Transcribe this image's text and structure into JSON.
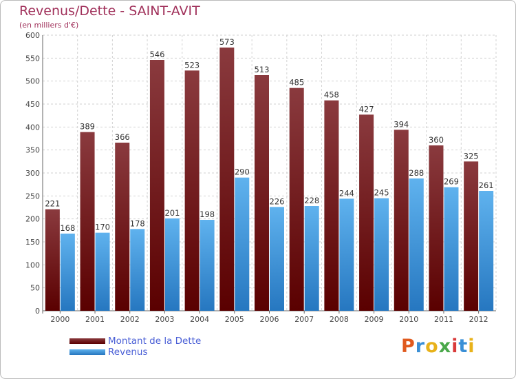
{
  "chart_data": {
    "type": "bar",
    "title": "Revenus/Dette - SAINT-AVIT",
    "subtitle": "(en milliers d'€)",
    "categories": [
      "2000",
      "2001",
      "2002",
      "2003",
      "2004",
      "2005",
      "2006",
      "2007",
      "2008",
      "2009",
      "2010",
      "2011",
      "2012"
    ],
    "series": [
      {
        "name": "Montant de la Dette",
        "values": [
          221,
          389,
          366,
          546,
          523,
          573,
          513,
          485,
          458,
          427,
          394,
          360,
          325
        ],
        "color_top": "#8a3a3e",
        "color_bottom": "#5a0000"
      },
      {
        "name": "Revenus",
        "values": [
          168,
          170,
          178,
          201,
          198,
          290,
          226,
          228,
          244,
          245,
          288,
          269,
          261
        ],
        "color_top": "#5fb2ee",
        "color_bottom": "#2677c0"
      }
    ],
    "ylim": [
      0,
      600
    ],
    "yticks": [
      0,
      50,
      100,
      150,
      200,
      250,
      300,
      350,
      400,
      450,
      500,
      550,
      600
    ],
    "grid": true,
    "legend_position": "bottom-left"
  },
  "logo": {
    "text": "Proxiti",
    "colors": [
      "#e05a1e",
      "#3a8fd6",
      "#e8b21a",
      "#4aa84a",
      "#d93a3a",
      "#3a8fd6",
      "#e8b21a"
    ]
  }
}
